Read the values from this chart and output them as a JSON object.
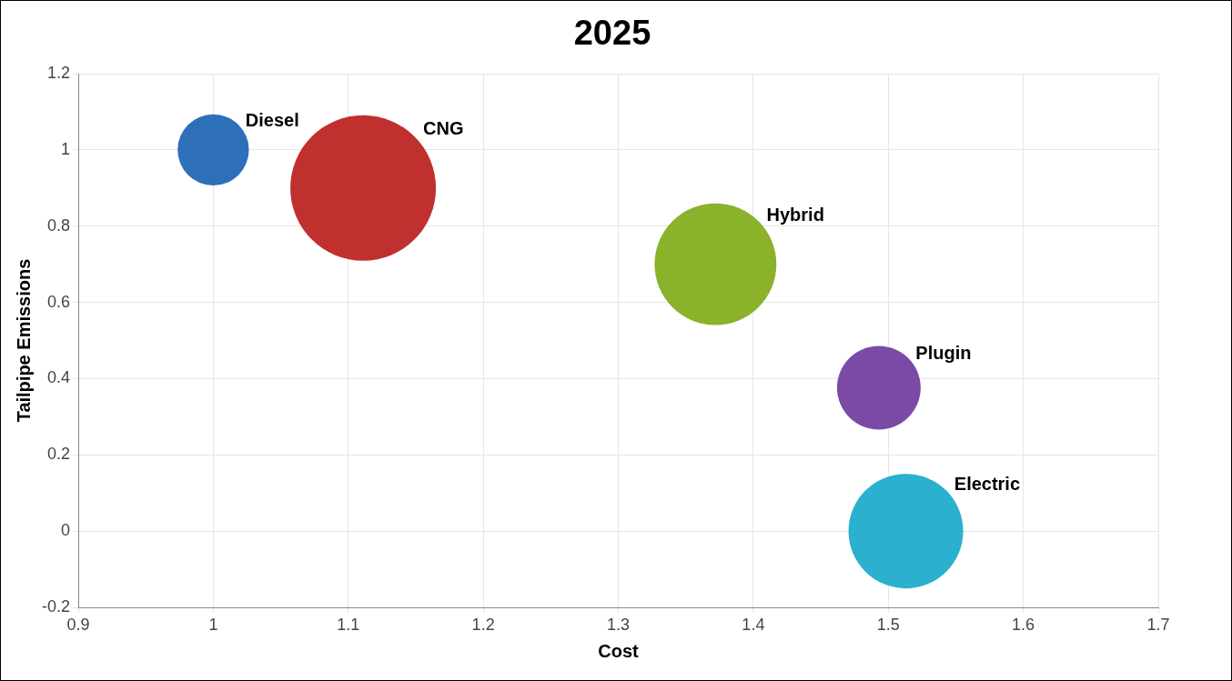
{
  "chart_data": {
    "type": "bubble",
    "title": "2025",
    "xlabel": "Cost",
    "ylabel": "Tailpipe Emissions",
    "xlim": [
      0.9,
      1.7
    ],
    "xticks": [
      0.9,
      1,
      1.1,
      1.2,
      1.3,
      1.4,
      1.5,
      1.6,
      1.7
    ],
    "ylim": [
      -0.2,
      1.2
    ],
    "yticks": [
      -0.2,
      0,
      0.2,
      0.4,
      0.6,
      0.8,
      1,
      1.2
    ],
    "grid": true,
    "legend": false,
    "series": [
      {
        "name": "Diesel",
        "color": "#2e6fba",
        "x": [
          1.0
        ],
        "values": [
          1.0
        ],
        "sizes": [
          0.24
        ]
      },
      {
        "name": "CNG",
        "color": "#c0302e",
        "x": [
          1.111
        ],
        "values": [
          0.9
        ],
        "sizes": [
          1
        ]
      },
      {
        "name": "Hybrid",
        "color": "#8ab22a",
        "x": [
          1.372
        ],
        "values": [
          0.7
        ],
        "sizes": [
          0.7
        ]
      },
      {
        "name": "Plugin",
        "color": "#7a4aa6",
        "x": [
          1.493
        ],
        "values": [
          0.376
        ],
        "sizes": [
          0.33
        ]
      },
      {
        "name": "Electric",
        "color": "#2bb0cf",
        "x": [
          1.513
        ],
        "values": [
          0
        ],
        "sizes": [
          0.62
        ]
      }
    ]
  }
}
